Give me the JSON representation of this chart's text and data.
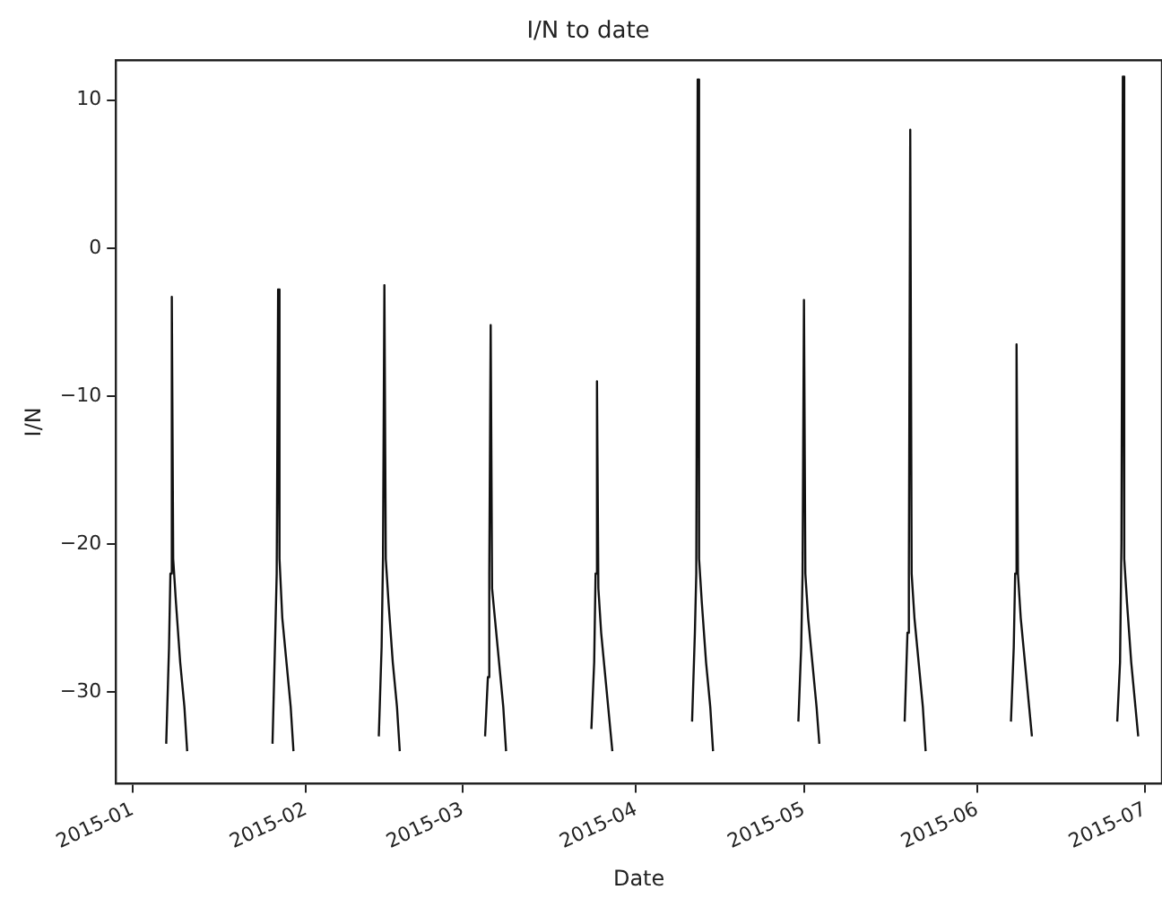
{
  "chart_data": {
    "type": "line",
    "title": "I/N to date",
    "xlabel": "Date",
    "ylabel": "I/N",
    "x": [
      "2015-01-07T00:00",
      "2015-01-07T12:00",
      "2015-01-07T18:00",
      "2015-01-08T00:00",
      "2015-01-08T06:00",
      "2015-01-08T18:00",
      "2015-01-09T12:00",
      "2015-01-10T06:00",
      "2015-01-10T18:00",
      "2015-01-12",
      "2015-01-26T00:00",
      "2015-01-26T12:00",
      "2015-01-26T18:00",
      "2015-01-27T00:00",
      "2015-01-27T06:00",
      "2015-01-27T18:00",
      "2015-01-28T12:00",
      "2015-01-29T06:00",
      "2015-01-29T18:00",
      "2015-01-31",
      "2015-02-14T00:00",
      "2015-02-14T12:00",
      "2015-02-14T18:00",
      "2015-02-15T00:00",
      "2015-02-15T06:00",
      "2015-02-15T18:00",
      "2015-02-16T12:00",
      "2015-02-17T06:00",
      "2015-02-17T18:00",
      "2015-02-19",
      "2015-03-05T00:00",
      "2015-03-05T12:00",
      "2015-03-05T18:00",
      "2015-03-06T00:00",
      "2015-03-06T06:00",
      "2015-03-06T18:00",
      "2015-03-07T12:00",
      "2015-03-08T06:00",
      "2015-03-08T18:00",
      "2015-03-10",
      "2015-03-24T00:00",
      "2015-03-24T12:00",
      "2015-03-24T18:00",
      "2015-03-25T00:00",
      "2015-03-25T06:00",
      "2015-03-25T18:00",
      "2015-03-26T12:00",
      "2015-03-27T06:00",
      "2015-03-27T18:00",
      "2015-03-29",
      "2015-04-11T00:00",
      "2015-04-11T12:00",
      "2015-04-11T18:00",
      "2015-04-12T00:00",
      "2015-04-12T06:00",
      "2015-04-12T18:00",
      "2015-04-13T12:00",
      "2015-04-14T06:00",
      "2015-04-14T18:00",
      "2015-04-16",
      "2015-04-30T00:00",
      "2015-04-30T12:00",
      "2015-04-30T18:00",
      "2015-05-01T00:00",
      "2015-05-01T06:00",
      "2015-05-01T18:00",
      "2015-05-02T12:00",
      "2015-05-03T06:00",
      "2015-05-03T18:00",
      "2015-05-05",
      "2015-05-19T00:00",
      "2015-05-19T12:00",
      "2015-05-19T18:00",
      "2015-05-20T00:00",
      "2015-05-20T06:00",
      "2015-05-20T18:00",
      "2015-05-21T12:00",
      "2015-05-22T06:00",
      "2015-05-22T18:00",
      "2015-05-24",
      "2015-06-07T00:00",
      "2015-06-07T12:00",
      "2015-06-07T18:00",
      "2015-06-08T00:00",
      "2015-06-08T06:00",
      "2015-06-08T18:00",
      "2015-06-09T12:00",
      "2015-06-10T06:00",
      "2015-06-10T18:00",
      "2015-06-12",
      "2015-06-26T00:00",
      "2015-06-26T12:00",
      "2015-06-26T18:00",
      "2015-06-27T00:00",
      "2015-06-27T06:00",
      "2015-06-27T18:00",
      "2015-06-28T12:00",
      "2015-06-29T06:00",
      "2015-06-29T18:00"
    ],
    "series": [
      {
        "color": "#111111",
        "values": [
          -33.5,
          -27,
          -22,
          -3.3,
          -21,
          -24,
          -28,
          -31,
          -34,
          null,
          -33.5,
          -26,
          -22,
          -2.8,
          -21,
          -25,
          -28,
          -31,
          -34,
          null,
          -33,
          -27,
          -21,
          -2.5,
          -21,
          -24,
          -28,
          -31,
          -34,
          null,
          -33,
          -29,
          -22,
          -5.2,
          -23,
          -25,
          -28,
          -31,
          -34,
          null,
          -32.5,
          -28,
          -22,
          -9,
          -23,
          -26,
          -29,
          -32,
          -34,
          null,
          -32,
          -26,
          -22,
          11.4,
          -21,
          -24,
          -28,
          -31,
          -34,
          null,
          -32,
          -27,
          -22,
          -3.5,
          -22,
          -25,
          -28,
          -31,
          -33.5,
          null,
          -32,
          -26,
          -22,
          8,
          -22,
          -25,
          -28,
          -31,
          -34,
          null,
          -32,
          -27,
          -22,
          -6.5,
          -22,
          -25,
          -28,
          -31,
          -33,
          null,
          -32,
          -28,
          -20,
          11.6,
          -21,
          -24,
          -28,
          -31,
          -33
        ]
      }
    ],
    "xlim": [
      "2014-12-29",
      "2015-07-04"
    ],
    "xticks": [
      "2015-01",
      "2015-02",
      "2015-03",
      "2015-04",
      "2015-05",
      "2015-06",
      "2015-07"
    ],
    "ylim": [
      -36.2,
      12.7
    ],
    "yticks": [
      10,
      0,
      -10,
      -20,
      -30
    ],
    "grid": false,
    "legend": false,
    "marker": "none",
    "line_style": "solid"
  }
}
